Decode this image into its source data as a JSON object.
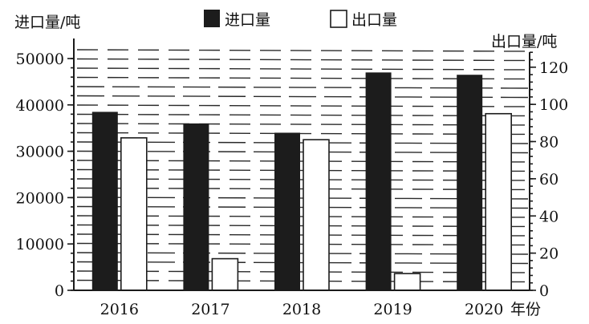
{
  "chart_data": {
    "type": "bar",
    "categories": [
      "2016",
      "2017",
      "2018",
      "2019",
      "2020"
    ],
    "x_axis_suffix": "年份",
    "series": [
      {
        "name": "进口量",
        "axis": "left",
        "values": [
          38500,
          36000,
          34000,
          47000,
          46500
        ],
        "color": "#1c1c1c"
      },
      {
        "name": "出口量",
        "axis": "right",
        "values": [
          82,
          17,
          81,
          9,
          95
        ],
        "color": "#ffffff"
      }
    ],
    "left_axis": {
      "label": "进口量/吨",
      "ylim": [
        0,
        50000
      ],
      "ticks": [
        0,
        10000,
        20000,
        30000,
        40000,
        50000
      ]
    },
    "right_axis": {
      "label": "出口量/吨",
      "ylim": [
        0,
        135
      ],
      "ticks": [
        0,
        20,
        40,
        60,
        80,
        100,
        120
      ]
    },
    "legend": {
      "placement": "top-center"
    },
    "grid": "dashed"
  }
}
